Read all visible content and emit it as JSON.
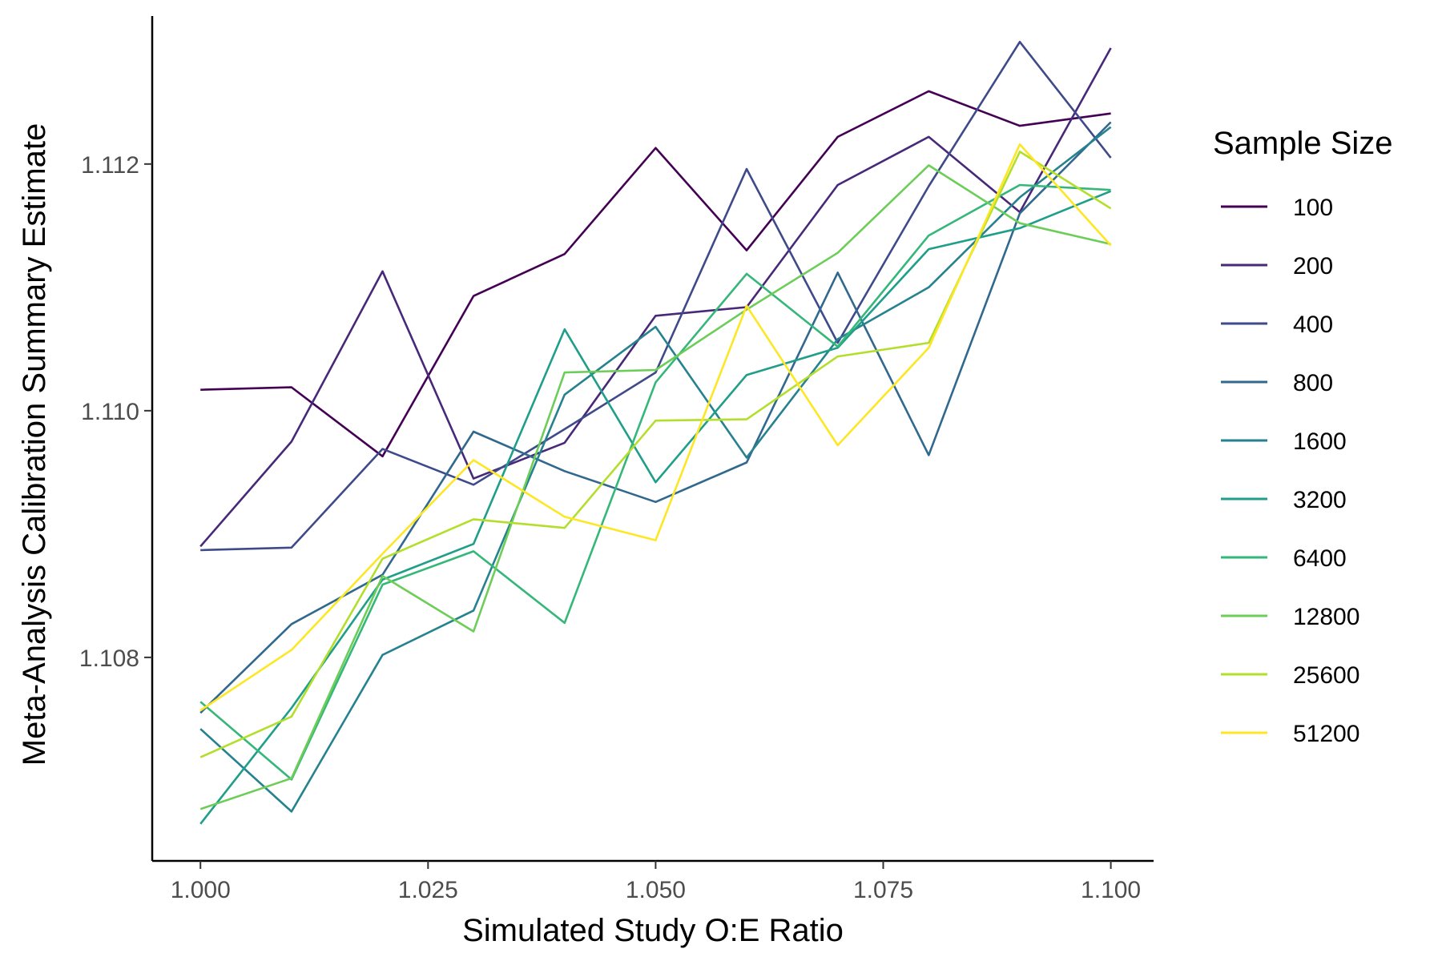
{
  "chart_data": {
    "type": "line",
    "xlabel": "Simulated Study O:E Ratio",
    "ylabel": "Meta-Analysis Calibration Summary Estimate",
    "xlim": [
      0.9947,
      1.1047
    ],
    "ylim": [
      1.10635,
      1.1132
    ],
    "x_ticks": [
      1.0,
      1.025,
      1.05,
      1.075,
      1.1
    ],
    "x_tick_labels": [
      "1.000",
      "1.025",
      "1.050",
      "1.075",
      "1.100"
    ],
    "y_ticks": [
      1.108,
      1.11,
      1.112
    ],
    "y_tick_labels": [
      "1.108",
      "1.110",
      "1.112"
    ],
    "grid": false,
    "legend": {
      "title": "Sample Size",
      "position": "right"
    },
    "x": [
      1.0,
      1.01,
      1.02,
      1.03,
      1.04,
      1.05,
      1.06,
      1.07,
      1.08,
      1.09,
      1.1
    ],
    "series": [
      {
        "name": "100",
        "color": "#440154",
        "values": [
          1.11017,
          1.11019,
          1.10963,
          1.11093,
          1.11127,
          1.11213,
          1.1113,
          1.11222,
          1.11259,
          1.11231,
          1.11241
        ]
      },
      {
        "name": "200",
        "color": "#482878",
        "values": [
          1.1089,
          1.10975,
          1.11113,
          1.10945,
          1.10974,
          1.11077,
          1.11084,
          1.11183,
          1.11222,
          1.11161,
          1.11294
        ]
      },
      {
        "name": "400",
        "color": "#3E4A89",
        "values": [
          1.10887,
          1.10889,
          1.10969,
          1.1094,
          1.10985,
          1.11031,
          1.11196,
          1.11055,
          1.11182,
          1.11299,
          1.11205
        ]
      },
      {
        "name": "800",
        "color": "#31688E",
        "values": [
          1.10755,
          1.10827,
          1.10867,
          1.10983,
          1.10951,
          1.10926,
          1.10958,
          1.11112,
          1.10964,
          1.1116,
          1.11234
        ]
      },
      {
        "name": "1600",
        "color": "#26828E",
        "values": [
          1.10742,
          1.10675,
          1.10802,
          1.10838,
          1.11013,
          1.11068,
          1.10962,
          1.11058,
          1.111,
          1.11173,
          1.1123
        ]
      },
      {
        "name": "3200",
        "color": "#1F9E89",
        "values": [
          1.10665,
          1.10759,
          1.10863,
          1.10892,
          1.11066,
          1.10942,
          1.11029,
          1.11051,
          1.11131,
          1.11148,
          1.11178
        ]
      },
      {
        "name": "6400",
        "color": "#35B779",
        "values": [
          1.10764,
          1.10701,
          1.10859,
          1.10886,
          1.10828,
          1.11023,
          1.11111,
          1.11052,
          1.11142,
          1.11183,
          1.11179
        ]
      },
      {
        "name": "12800",
        "color": "#6DCD59",
        "values": [
          1.10677,
          1.10702,
          1.10866,
          1.10821,
          1.11031,
          1.11033,
          1.11082,
          1.11128,
          1.11199,
          1.11152,
          1.11135
        ]
      },
      {
        "name": "25600",
        "color": "#B4DE2C",
        "values": [
          1.10719,
          1.10752,
          1.1088,
          1.10912,
          1.10905,
          1.10992,
          1.10993,
          1.11044,
          1.11055,
          1.1121,
          1.11164
        ]
      },
      {
        "name": "51200",
        "color": "#FDE725",
        "values": [
          1.10757,
          1.10806,
          1.10884,
          1.1096,
          1.10914,
          1.10895,
          1.11085,
          1.10972,
          1.11051,
          1.11216,
          1.11134
        ]
      }
    ]
  }
}
